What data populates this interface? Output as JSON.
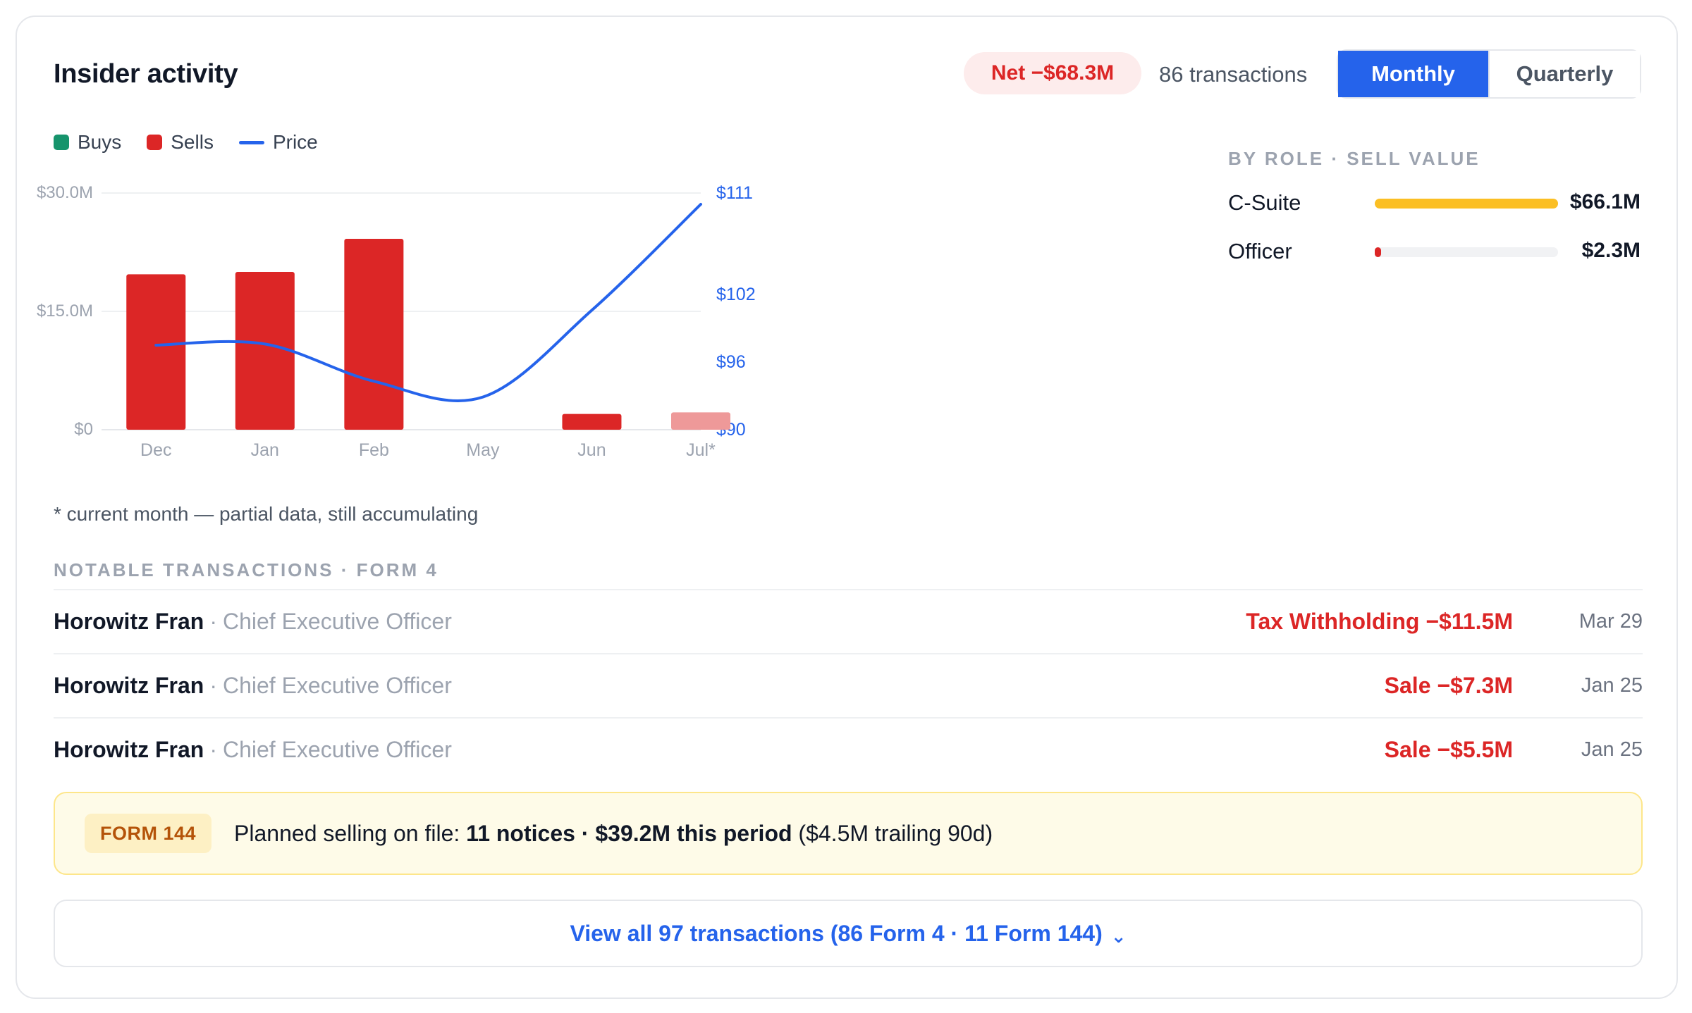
{
  "header": {
    "title": "Insider activity",
    "net_badge": "Net −$68.3M",
    "transactions_count": "86 transactions",
    "toggle": {
      "options": [
        "Monthly",
        "Quarterly"
      ],
      "selected": "Monthly"
    }
  },
  "legend": {
    "buys": "Buys",
    "sells": "Sells",
    "price": "Price"
  },
  "colors": {
    "buy": "#16946c",
    "sell": "#dc2626",
    "sell_partial": "#ee9999",
    "price": "#2563eb",
    "accent": "#2563eb",
    "csuite": "#fbbf24"
  },
  "chart_data": {
    "type": "bar",
    "categories": [
      "Dec",
      "Jan",
      "Feb",
      "May",
      "Jun",
      "Jul*"
    ],
    "series": [
      {
        "name": "Buys",
        "values": [
          0,
          0,
          0,
          0,
          0,
          0
        ]
      },
      {
        "name": "Sells",
        "values": [
          19.7,
          20.0,
          24.2,
          0,
          2.0,
          2.2
        ]
      },
      {
        "name": "Price",
        "type": "line",
        "axis": "right",
        "values": [
          97.5,
          97.6,
          94.3,
          92.9,
          100.6,
          110.0
        ]
      }
    ],
    "partial_category": "Jul*",
    "y_left": {
      "ticks": [
        "$0",
        "$15.0M",
        "$30.0M"
      ],
      "tick_values": [
        0,
        15,
        30
      ],
      "lim": [
        0,
        30
      ]
    },
    "y_right": {
      "ticks": [
        "$90",
        "$96",
        "$102",
        "$111"
      ],
      "tick_values": [
        90,
        96,
        102,
        111
      ],
      "lim": [
        90,
        111
      ]
    },
    "grid": true,
    "legend_position": "top-left"
  },
  "footnote": "* current month — partial data, still accumulating",
  "by_role": {
    "heading": "BY ROLE · SELL VALUE",
    "rows": [
      {
        "name": "C-Suite",
        "value": "$66.1M",
        "fraction": 1.0,
        "color": "#fbbf24"
      },
      {
        "name": "Officer",
        "value": "$2.3M",
        "fraction": 0.035,
        "color": "#dc2626"
      }
    ]
  },
  "notable": {
    "heading": "NOTABLE TRANSACTIONS · FORM 4",
    "rows": [
      {
        "name": "Horowitz Fran",
        "role": "Chief Executive Officer",
        "amount": "Tax Withholding −$11.5M",
        "date": "Mar 29"
      },
      {
        "name": "Horowitz Fran",
        "role": "Chief Executive Officer",
        "amount": "Sale −$7.3M",
        "date": "Jan 25"
      },
      {
        "name": "Horowitz Fran",
        "role": "Chief Executive Officer",
        "amount": "Sale −$5.5M",
        "date": "Jan 25"
      }
    ]
  },
  "form144": {
    "badge": "FORM 144",
    "prefix": "Planned selling on file: ",
    "bold": "11 notices · $39.2M this period",
    "suffix": " ($4.5M trailing 90d)"
  },
  "view_all": {
    "label": "View all 97 transactions (86 Form 4 · 11 Form 144)",
    "icon": "chevron-down-icon"
  }
}
